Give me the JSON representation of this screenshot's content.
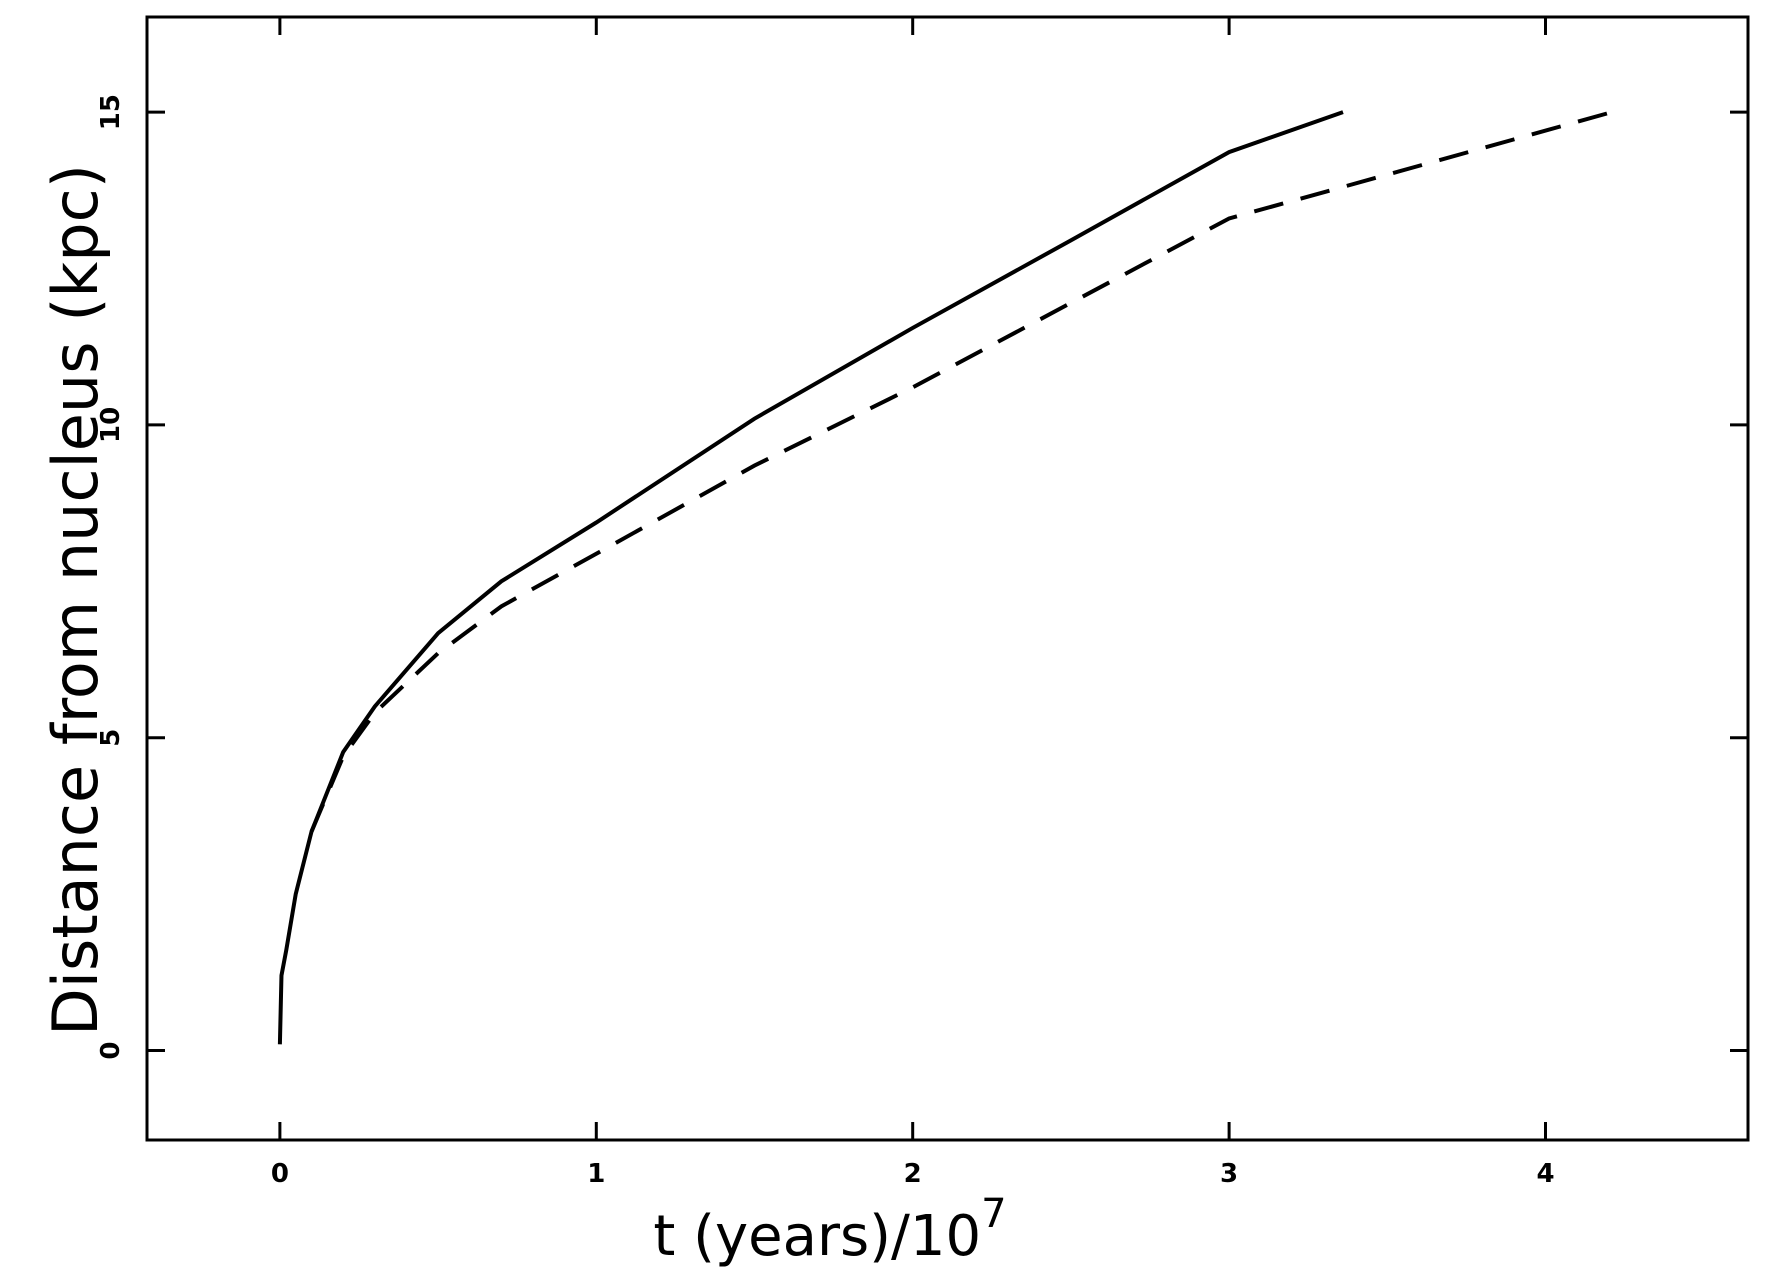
{
  "chart_data": {
    "type": "line",
    "x_label": "t (years)/10",
    "x_label_superscript": "7",
    "y_label": "Distance from nucleus (kpc)",
    "xlim": [
      -0.42,
      4.64
    ],
    "ylim": [
      -1.43,
      16.52
    ],
    "xticks": [
      0,
      1,
      2,
      3,
      4
    ],
    "yticks": [
      0,
      5,
      10,
      15
    ],
    "series": [
      {
        "color": "#000000",
        "style": "solid",
        "x": [
          0,
          0.005,
          0.02,
          0.05,
          0.1,
          0.2,
          0.3,
          0.5,
          0.7,
          1,
          1.5,
          2,
          2.5,
          3,
          3.36
        ],
        "values": [
          0.1,
          1.2,
          1.6,
          2.5,
          3.5,
          4.77,
          5.5,
          6.67,
          7.5,
          8.44,
          10.1,
          11.55,
          12.95,
          14.36,
          15
        ]
      },
      {
        "color": "#000000",
        "style": "dashed",
        "x": [
          0.1,
          0.2,
          0.3,
          0.5,
          0.7,
          1,
          1.5,
          2,
          2.5,
          3,
          3.5,
          4.21
        ],
        "values": [
          3.5,
          4.7,
          5.4,
          6.35,
          7.1,
          7.94,
          9.35,
          10.6,
          11.95,
          13.3,
          14.0,
          15
        ]
      }
    ]
  }
}
